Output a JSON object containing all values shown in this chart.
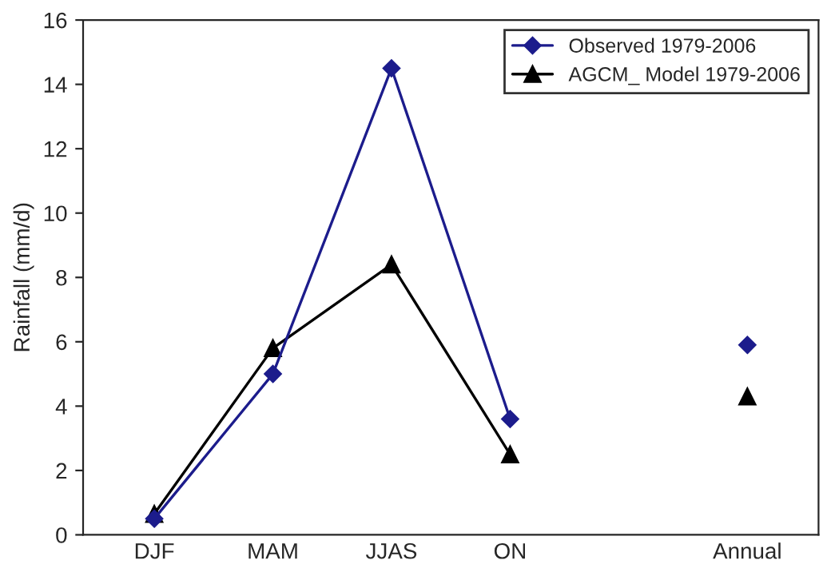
{
  "chart_data": {
    "type": "line",
    "ylabel": "Rainfall (mm/d)",
    "categories": [
      "DJF",
      "MAM",
      "JJAS",
      "ON",
      null,
      "Annual"
    ],
    "series": [
      {
        "name": "Observed 1979-2006",
        "color": "#1c1c8c",
        "marker": "diamond",
        "values": [
          0.5,
          5.0,
          14.5,
          3.6,
          null,
          5.9
        ]
      },
      {
        "name": "AGCM_ Model 1979-2006",
        "color": "#000000",
        "marker": "triangle",
        "values": [
          0.65,
          5.8,
          8.4,
          2.5,
          null,
          4.3
        ]
      }
    ],
    "ylim": [
      0,
      16
    ],
    "yticks": [
      0,
      2,
      4,
      6,
      8,
      10,
      12,
      14,
      16
    ],
    "grid": false,
    "legend": "top right",
    "line_style": "solid"
  }
}
